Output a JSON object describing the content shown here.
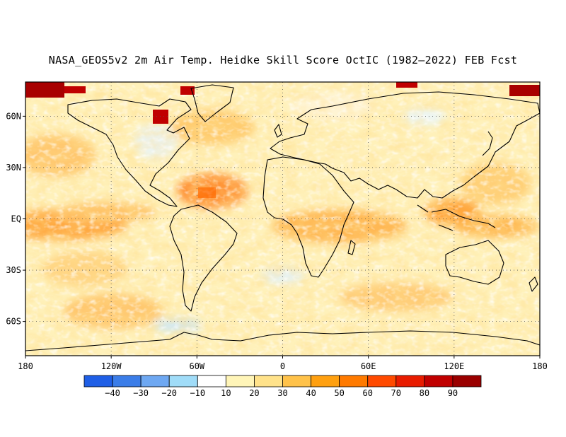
{
  "title": "NASA_GEOS5v2 2m Air Temp. Heidke Skill Score OctIC (1982–2022) FEB Fcst",
  "map": {
    "lat_labels": [
      {
        "label": "60N",
        "lat": 60
      },
      {
        "label": "30N",
        "lat": 30
      },
      {
        "label": "EQ",
        "lat": 0
      },
      {
        "label": "30S",
        "lat": -30
      },
      {
        "label": "60S",
        "lat": -60
      }
    ],
    "lon_labels": [
      {
        "label": "180",
        "lon": -180
      },
      {
        "label": "120W",
        "lon": -120
      },
      {
        "label": "60W",
        "lon": -60
      },
      {
        "label": "0",
        "lon": 0
      },
      {
        "label": "60E",
        "lon": 60
      },
      {
        "label": "120E",
        "lon": 120
      },
      {
        "label": "180",
        "lon": 180
      }
    ],
    "lat_range": [
      -80,
      80
    ],
    "lon_range": [
      -180,
      180
    ],
    "grid": "dotted"
  },
  "colorbar": {
    "labels": [
      "−40",
      "−30",
      "−20",
      "−10",
      "10",
      "20",
      "30",
      "40",
      "50",
      "60",
      "70",
      "80",
      "90"
    ],
    "colors": [
      "#1f5fe6",
      "#3b7de8",
      "#6ea8f2",
      "#a0dcf8",
      "#ffffff",
      "#fff5b8",
      "#ffe28a",
      "#ffc24a",
      "#ffa010",
      "#ff7a00",
      "#ff4a00",
      "#e81c00",
      "#c00000",
      "#9a0000"
    ]
  }
}
